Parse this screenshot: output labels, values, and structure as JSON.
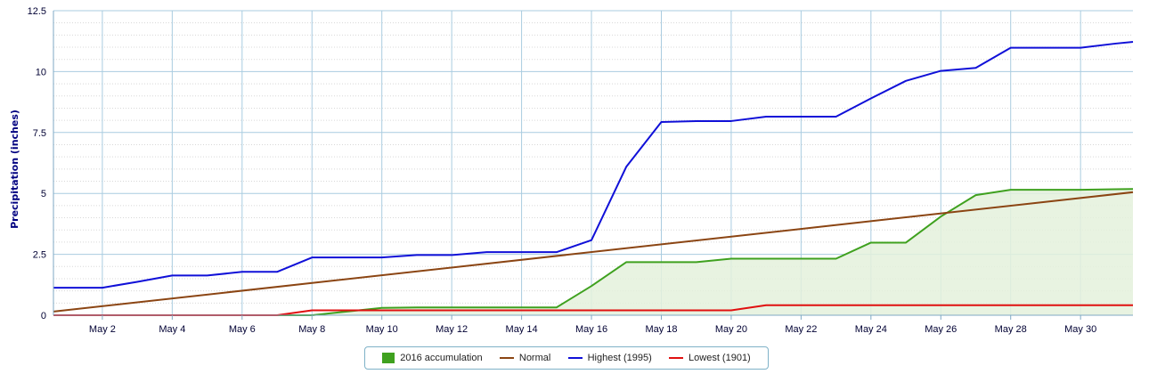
{
  "chart_data": {
    "type": "line",
    "ylabel": "Precipitation (inches)",
    "ylim": [
      0,
      12.5
    ],
    "xlim": [
      0.6,
      31.5
    ],
    "y_ticks": [
      0,
      2.5,
      5,
      7.5,
      10,
      12.5
    ],
    "y_tick_labels": [
      "0",
      "2.5",
      "5",
      "7.5",
      "10",
      "12.5"
    ],
    "x_ticks": [
      2,
      4,
      6,
      8,
      10,
      12,
      14,
      16,
      18,
      20,
      22,
      24,
      26,
      28,
      30
    ],
    "x_tick_labels": [
      "May 2",
      "May 4",
      "May 6",
      "May 8",
      "May 10",
      "May 12",
      "May 14",
      "May 16",
      "May 18",
      "May 20",
      "May 22",
      "May 24",
      "May 26",
      "May 28",
      "May 30"
    ],
    "grid": true,
    "legend_position": "bottom-center",
    "series": [
      {
        "name": "2016 accumulation",
        "style": "area",
        "color": "#3fa11f",
        "fill": "#e4f1dc",
        "x": [
          1,
          8,
          9,
          10,
          11,
          12,
          13,
          14,
          15,
          16,
          17,
          18,
          19,
          20,
          21,
          22,
          23,
          24,
          25,
          26,
          27,
          28,
          29,
          30,
          31,
          31.5
        ],
        "values": [
          0,
          0,
          0.15,
          0.3,
          0.32,
          0.32,
          0.32,
          0.32,
          0.32,
          1.2,
          2.18,
          2.18,
          2.18,
          2.32,
          2.32,
          2.32,
          2.32,
          2.98,
          2.98,
          4.05,
          4.93,
          5.15,
          5.15,
          5.15,
          5.17,
          5.18
        ]
      },
      {
        "name": "Normal",
        "style": "line",
        "color": "#8b4513",
        "x": [
          0.6,
          31.5
        ],
        "values": [
          0.15,
          5.05
        ]
      },
      {
        "name": "Highest (1995)",
        "style": "line",
        "color": "#1010d8",
        "x": [
          0.6,
          2,
          3,
          4,
          5,
          6,
          7,
          8,
          9,
          10,
          11,
          12,
          13,
          14,
          15,
          16,
          17,
          18,
          19,
          20,
          21,
          22,
          23,
          24,
          25,
          26,
          27,
          28,
          29,
          30,
          31,
          31.5
        ],
        "values": [
          1.13,
          1.13,
          1.37,
          1.63,
          1.63,
          1.78,
          1.78,
          2.37,
          2.37,
          2.37,
          2.47,
          2.47,
          2.59,
          2.59,
          2.59,
          3.08,
          6.1,
          7.93,
          7.97,
          7.97,
          8.15,
          8.15,
          8.15,
          8.9,
          9.62,
          10.03,
          10.15,
          10.98,
          10.98,
          10.98,
          11.15,
          11.22
        ]
      },
      {
        "name": "Lowest (1901)",
        "style": "line",
        "color": "#e01010",
        "x": [
          0.6,
          7,
          8,
          20,
          21,
          31.5
        ],
        "values": [
          0,
          0,
          0.2,
          0.2,
          0.41,
          0.41
        ]
      }
    ]
  }
}
